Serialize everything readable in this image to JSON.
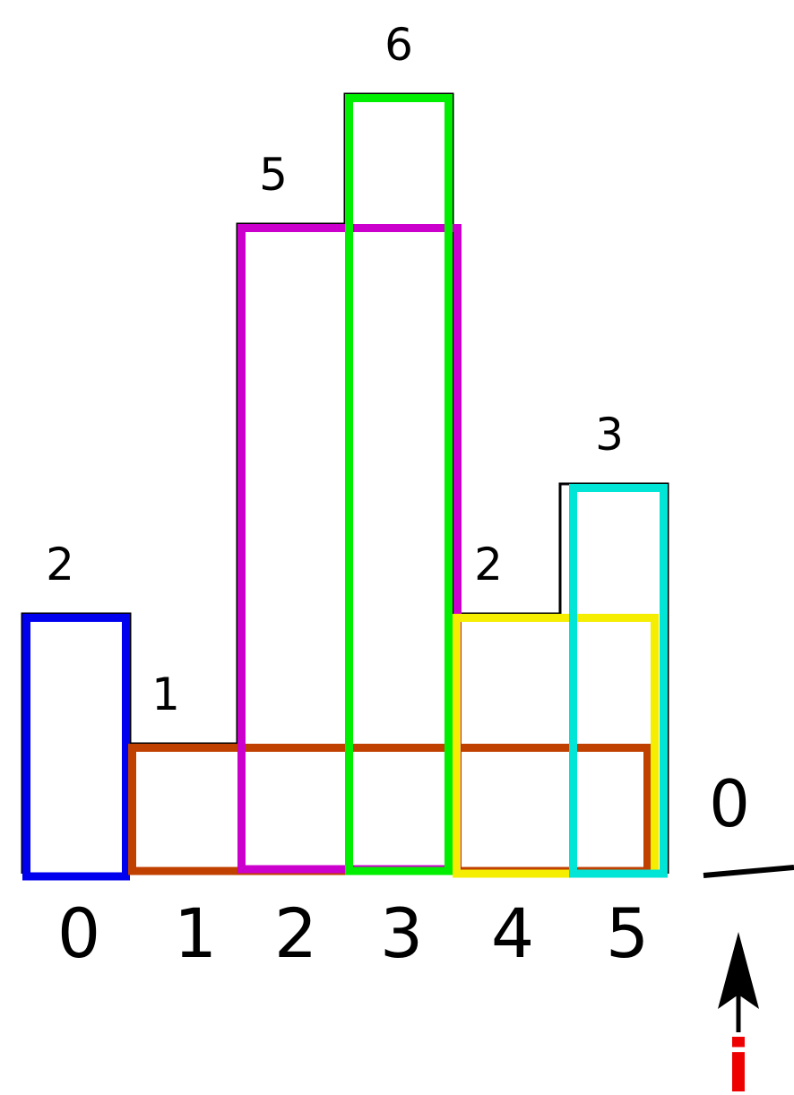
{
  "heights": [
    2,
    1,
    5,
    6,
    2,
    3
  ],
  "sentinel_height": 0,
  "height_labels": [
    "2",
    "1",
    "5",
    "6",
    "2",
    "3"
  ],
  "sentinel_label": "0",
  "index_labels": [
    "0",
    "1",
    "2",
    "3",
    "4",
    "5"
  ],
  "pointer_label": "i",
  "rectangles": [
    {
      "name": "rect-blue",
      "from_index": 0,
      "to_index": 0,
      "height": 2,
      "color": "#0000ee"
    },
    {
      "name": "rect-orange",
      "from_index": 1,
      "to_index": 5,
      "height": 1,
      "color": "#c04000"
    },
    {
      "name": "rect-magenta",
      "from_index": 2,
      "to_index": 3,
      "height": 5,
      "color": "#cc00cc"
    },
    {
      "name": "rect-green",
      "from_index": 3,
      "to_index": 3,
      "height": 6,
      "color": "#00ee00"
    },
    {
      "name": "rect-yellow",
      "from_index": 4,
      "to_index": 5,
      "height": 2,
      "color": "#f5ee00"
    },
    {
      "name": "rect-cyan",
      "from_index": 5,
      "to_index": 5,
      "height": 3,
      "color": "#00e5d5"
    }
  ],
  "colors": {
    "outline": "#000000",
    "pointer_label": "#ee0000",
    "text": "#000000"
  }
}
